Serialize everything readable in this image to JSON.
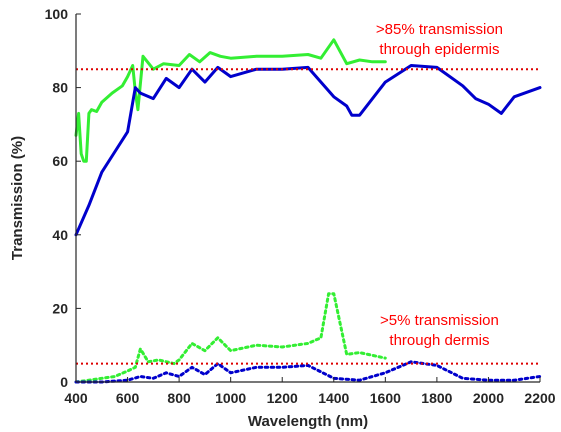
{
  "chart_data": {
    "type": "line",
    "xlabel": "Wavelength (nm)",
    "ylabel": "Transmission (%)",
    "xlim": [
      400,
      2200
    ],
    "ylim": [
      0,
      100
    ],
    "xticks": [
      400,
      600,
      800,
      1000,
      1200,
      1400,
      1600,
      1800,
      2000,
      2200
    ],
    "yticks": [
      0,
      20,
      40,
      60,
      80,
      100
    ],
    "grid": false,
    "colors": {
      "green": "#33ee33",
      "blue": "#0000cc",
      "red": "#dd0000"
    },
    "series": [
      {
        "color": "green",
        "style": "solid",
        "x": [
          400,
          410,
          420,
          430,
          440,
          450,
          460,
          480,
          500,
          540,
          580,
          600,
          620,
          630,
          640,
          660,
          700,
          740,
          800,
          840,
          880,
          920,
          960,
          1000,
          1100,
          1200,
          1300,
          1350,
          1400,
          1450,
          1500,
          1550,
          1600
        ],
        "y": [
          67,
          73,
          62,
          60,
          60,
          73,
          74,
          73.5,
          76,
          78.5,
          80.5,
          83,
          86,
          79,
          74,
          88.5,
          85,
          86.5,
          86,
          89,
          87,
          89.5,
          88.5,
          88,
          88.5,
          88.5,
          89,
          88,
          93,
          86.5,
          87.5,
          87,
          87
        ]
      },
      {
        "color": "blue",
        "style": "solid",
        "x": [
          400,
          450,
          500,
          550,
          600,
          630,
          650,
          700,
          750,
          800,
          850,
          900,
          950,
          1000,
          1100,
          1200,
          1300,
          1400,
          1450,
          1470,
          1500,
          1600,
          1700,
          1800,
          1900,
          1950,
          2000,
          2050,
          2100,
          2200
        ],
        "y": [
          40,
          48,
          57,
          62.5,
          68,
          80,
          78.5,
          77,
          82.5,
          80,
          85,
          81.5,
          85.5,
          83,
          85,
          85,
          85.5,
          77.5,
          75,
          72.5,
          72.5,
          81.5,
          86,
          85.5,
          80.5,
          77,
          75.5,
          73,
          77.5,
          80
        ]
      },
      {
        "color": "green",
        "style": "dotted",
        "x": [
          400,
          450,
          500,
          550,
          600,
          630,
          650,
          680,
          720,
          780,
          800,
          850,
          900,
          950,
          1000,
          1100,
          1200,
          1300,
          1350,
          1380,
          1400,
          1450,
          1500,
          1600
        ],
        "y": [
          0,
          0.5,
          1,
          1.5,
          3,
          4,
          9,
          5.5,
          6,
          5,
          6,
          10.5,
          8.5,
          12,
          8.5,
          10,
          9.5,
          10.5,
          12,
          24,
          24,
          7.5,
          8,
          6.5
        ]
      },
      {
        "color": "blue",
        "style": "dotted",
        "x": [
          400,
          500,
          600,
          650,
          700,
          750,
          800,
          850,
          900,
          950,
          1000,
          1100,
          1200,
          1300,
          1400,
          1500,
          1600,
          1700,
          1800,
          1900,
          2000,
          2100,
          2200
        ],
        "y": [
          0,
          0,
          0.5,
          1.5,
          1,
          2.5,
          1.5,
          4,
          2,
          5,
          2.5,
          4,
          4,
          4.5,
          1,
          0.5,
          2.5,
          5.5,
          4.5,
          1,
          0.5,
          0.5,
          1.5
        ]
      }
    ],
    "thresholds": [
      {
        "y": 85,
        "color": "red",
        "style": "dotted"
      },
      {
        "y": 5,
        "color": "red",
        "style": "dotted"
      }
    ],
    "annotations": [
      {
        "lines": [
          ">85% transmission",
          "through epidermis"
        ],
        "x": 1810,
        "y": 94.5,
        "color": "red"
      },
      {
        "lines": [
          ">5% transmission",
          "through dermis"
        ],
        "x": 1810,
        "y": 15.5,
        "color": "red"
      }
    ]
  }
}
